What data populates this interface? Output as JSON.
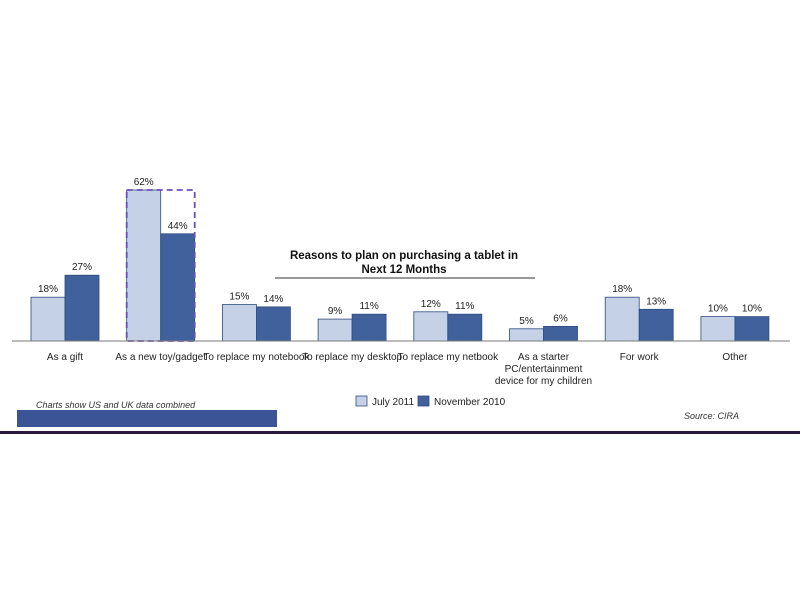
{
  "chart_data": {
    "type": "bar",
    "title_line1": "Reasons to plan on purchasing a tablet in",
    "title_line2": "Next 12 Months",
    "categories": [
      [
        "As a gift"
      ],
      [
        "As a new toy/gadget"
      ],
      [
        "To replace my notebook"
      ],
      [
        "To replace my desktop"
      ],
      [
        "To replace my netbook"
      ],
      [
        "As a starter",
        "PC/entertainment",
        "device for my children"
      ],
      [
        "For work"
      ],
      [
        "Other"
      ]
    ],
    "series": [
      {
        "name": "July 2011",
        "values": [
          18,
          62,
          15,
          9,
          12,
          5,
          18,
          10
        ]
      },
      {
        "name": "November 2010",
        "values": [
          27,
          44,
          14,
          11,
          11,
          6,
          13,
          10
        ]
      }
    ],
    "unit": "%",
    "highlight_category_index": 1,
    "ylim": [
      0,
      62
    ],
    "grid": false,
    "legend_position": "bottom-center",
    "colors": {
      "series_light": "#c5d1e6",
      "series_dark": "#40619b",
      "bar_border": "#2f4b7e",
      "highlight_border": "#6b4fb8",
      "note_bar": "#3b5496",
      "bottom_rule": "#2a1a3a"
    }
  },
  "notes": {
    "footnote": "Charts show US and UK data combined",
    "source": "Source: CIRA"
  }
}
